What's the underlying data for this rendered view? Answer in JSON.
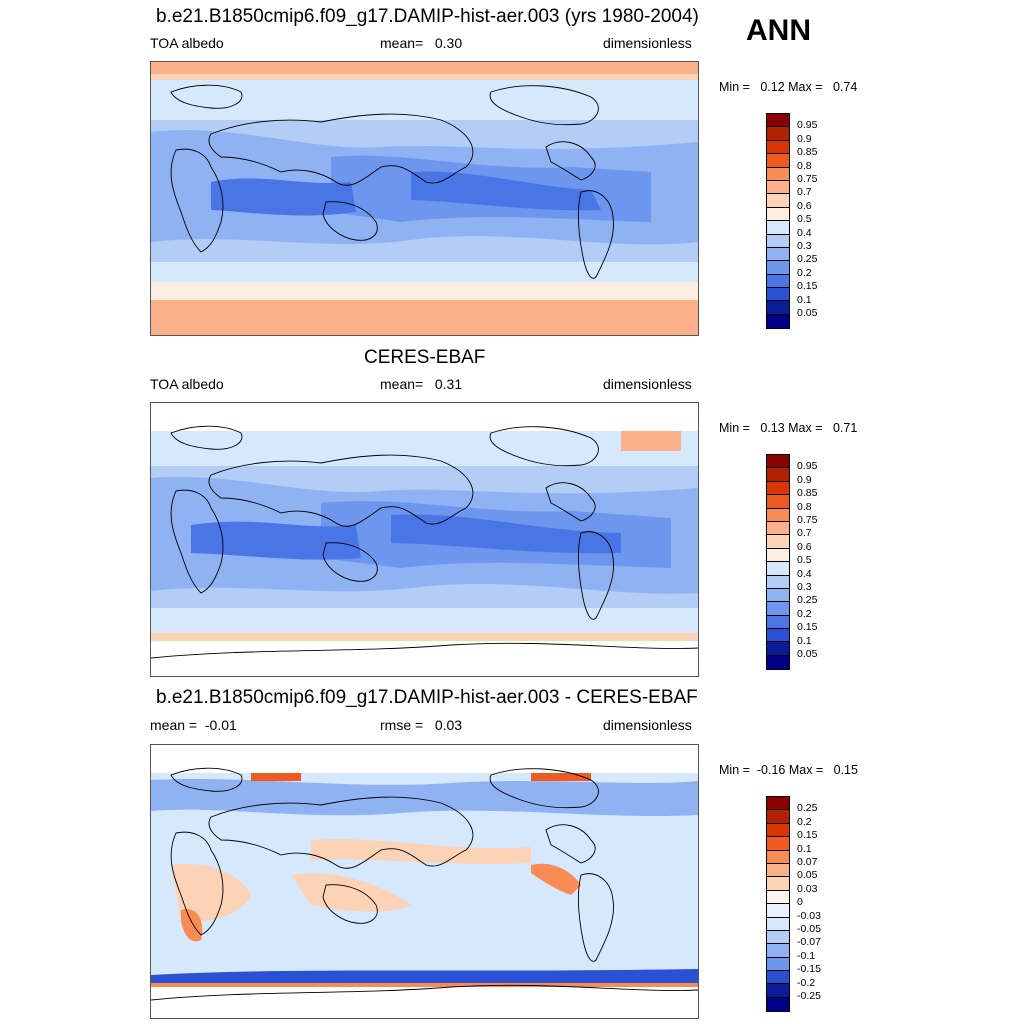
{
  "season": "ANN",
  "panels": [
    {
      "title": "b.e21.B1850cmip6.f09_g17.DAMIP-hist-aer.003 (yrs 1980-2004)",
      "left": "TOA albedo",
      "center": "mean=   0.30",
      "right": "dimensionless",
      "minmax": "Min =   0.12 Max =   0.74",
      "colorbar_labels": [
        "0.95",
        "0.9",
        "0.85",
        "0.8",
        "0.75",
        "0.7",
        "0.6",
        "0.5",
        "0.4",
        "0.3",
        "0.25",
        "0.2",
        "0.15",
        "0.1",
        "0.05"
      ],
      "colorbar_colors": [
        "#8b0000",
        "#b22200",
        "#d93500",
        "#f05a20",
        "#f98c55",
        "#fbb08a",
        "#fdd3b8",
        "#fdeee2",
        "#d6e8fb",
        "#b3cdf7",
        "#8fb2f3",
        "#6d96ee",
        "#4a75e6",
        "#2a50d6",
        "#0a1c9a",
        "#00008b"
      ],
      "map_kind": "albedo_model"
    },
    {
      "title": "CERES-EBAF",
      "left": "TOA albedo",
      "center": "mean=   0.31",
      "right": "dimensionless",
      "minmax": "Min =   0.13 Max =   0.71",
      "colorbar_labels": [
        "0.95",
        "0.9",
        "0.85",
        "0.8",
        "0.75",
        "0.7",
        "0.6",
        "0.5",
        "0.4",
        "0.3",
        "0.25",
        "0.2",
        "0.15",
        "0.1",
        "0.05"
      ],
      "colorbar_colors": [
        "#8b0000",
        "#b22200",
        "#d93500",
        "#f05a20",
        "#f98c55",
        "#fbb08a",
        "#fdd3b8",
        "#fdeee2",
        "#d6e8fb",
        "#b3cdf7",
        "#8fb2f3",
        "#6d96ee",
        "#4a75e6",
        "#2a50d6",
        "#0a1c9a",
        "#00008b"
      ],
      "map_kind": "albedo_obs"
    },
    {
      "title": "b.e21.B1850cmip6.f09_g17.DAMIP-hist-aer.003 - CERES-EBAF",
      "left": "mean =  -0.01",
      "center": "rmse =   0.03",
      "right": "dimensionless",
      "minmax": "Min =  -0.16 Max =   0.15",
      "colorbar_labels": [
        "0.25",
        "0.2",
        "0.15",
        "0.1",
        "0.07",
        "0.05",
        "0.03",
        "0",
        "-0.03",
        "-0.05",
        "-0.07",
        "-0.1",
        "-0.15",
        "-0.2",
        "-0.25"
      ],
      "colorbar_colors": [
        "#8b0000",
        "#b22200",
        "#d93500",
        "#f05a20",
        "#f98c55",
        "#fbb08a",
        "#fdd3b8",
        "#fff5ee",
        "#eaf2fd",
        "#d6e8fb",
        "#b3cdf7",
        "#8fb2f3",
        "#6d96ee",
        "#2a50d6",
        "#0a1c9a",
        "#00008b"
      ],
      "map_kind": "difference"
    }
  ]
}
